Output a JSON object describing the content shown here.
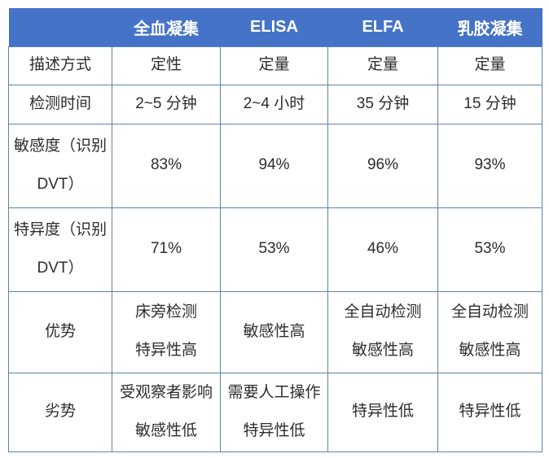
{
  "table": {
    "header": {
      "columns": [
        "",
        "全血凝集",
        "ELISA",
        "ELFA",
        "乳胶凝集"
      ]
    },
    "rows": [
      {
        "label": [
          "描述方式"
        ],
        "cells": [
          [
            "定性"
          ],
          [
            "定量"
          ],
          [
            "定量"
          ],
          [
            "定量"
          ]
        ]
      },
      {
        "label": [
          "检测时间"
        ],
        "cells": [
          [
            "2~5 分钟"
          ],
          [
            "2~4 小时"
          ],
          [
            "35 分钟"
          ],
          [
            "15 分钟"
          ]
        ]
      },
      {
        "label": [
          "敏感度（识别",
          "DVT）"
        ],
        "cells": [
          [
            "83%"
          ],
          [
            "94%"
          ],
          [
            "96%"
          ],
          [
            "93%"
          ]
        ]
      },
      {
        "label": [
          "特异度（识别",
          "DVT）"
        ],
        "cells": [
          [
            "71%"
          ],
          [
            "53%"
          ],
          [
            "46%"
          ],
          [
            "53%"
          ]
        ]
      },
      {
        "label": [
          "优势"
        ],
        "cells": [
          [
            "床旁检测",
            "特异性高"
          ],
          [
            "敏感性高"
          ],
          [
            "全自动检测",
            "敏感性高"
          ],
          [
            "全自动检测",
            "敏感性高"
          ]
        ]
      },
      {
        "label": [
          "劣势"
        ],
        "cells": [
          [
            "受观察者影响",
            "敏感性低"
          ],
          [
            "需要人工操作",
            "特异性低"
          ],
          [
            "特异性低"
          ],
          [
            "特异性低"
          ]
        ]
      }
    ]
  },
  "colors": {
    "header_bg": "#4573c8",
    "header_text": "#ffffff",
    "border": "#5b83ab",
    "cell_bg": "#ffffff",
    "body_text": "#2d2d2d"
  }
}
